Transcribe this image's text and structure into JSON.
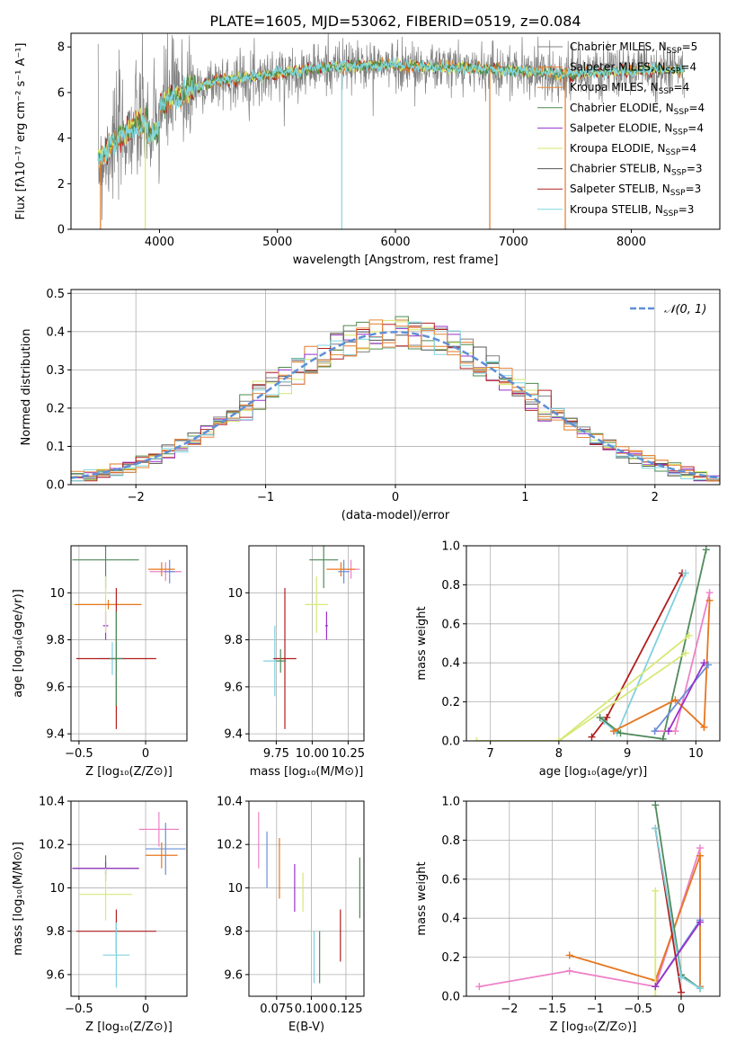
{
  "figure_title": "PLATE=1605, MJD=53062, FIBERID=0519, z=0.084",
  "colors": {
    "miles_chabrier": "#808080",
    "miles_salpeter": "#e07a26",
    "miles_kroupa": "#e8883a",
    "elodie_chabrier": "#4d8a4d",
    "elodie_salpeter": "#9932cc",
    "elodie_kroupa": "#d6e66a",
    "stelib_chabrier": "#555555",
    "stelib_salpeter": "#b22222",
    "stelib_kroupa": "#7fd6e0",
    "normal": "#5f8fd6",
    "pink": "#ee82c8",
    "blue": "#6a8fd8",
    "orange": "#e8761e",
    "green": "#4f8a5a",
    "red": "#b21e1e",
    "cyan": "#80d0e0",
    "yellow": "#d8e878",
    "purple": "#9a33c8"
  },
  "chart_data": [
    {
      "id": "spectrum",
      "type": "line",
      "xlabel": "wavelength [Angstrom, rest frame]",
      "ylabel": "Flux [fλ10⁻¹⁷ erg cm⁻² s⁻¹ A⁻¹]",
      "xlim": [
        3250,
        8750
      ],
      "ylim": [
        0,
        8.6
      ],
      "xticks": [
        4000,
        5000,
        6000,
        7000,
        8000
      ],
      "yticks": [
        0,
        2,
        4,
        6,
        8
      ],
      "grid": false,
      "legend": "top-right",
      "legend_entries": [
        "Chabrier MILES, N_SSP=5",
        "Salpeter MILES, N_SSP=4",
        "Kroupa MILES, N_SSP=4",
        "Chabrier ELODIE, N_SSP=4",
        "Salpeter ELODIE, N_SSP=4",
        "Kroupa ELODIE, N_SSP=4",
        "Chabrier STELIB, N_SSP=3",
        "Salpeter STELIB, N_SSP=3",
        "Kroupa STELIB, N_SSP=3"
      ],
      "data_shape": {
        "x": [
          3500,
          3600,
          3700,
          3800,
          3900,
          4000,
          4100,
          4300,
          4500,
          4800,
          5100,
          5400,
          5700,
          6000,
          6300,
          6600,
          6900,
          7200,
          7500,
          7800,
          8100,
          8400
        ],
        "y": [
          3.0,
          3.8,
          4.2,
          4.5,
          4.8,
          5.3,
          5.8,
          6.2,
          6.5,
          6.7,
          6.9,
          7.1,
          7.2,
          7.2,
          7.1,
          7.1,
          7.0,
          6.9,
          6.8,
          6.9,
          7.0,
          7.0
        ]
      }
    },
    {
      "id": "residuals",
      "type": "line",
      "xlabel": "(data-model)/error",
      "ylabel": "Normed distribution",
      "xlim": [
        -2.5,
        2.5
      ],
      "ylim": [
        0,
        0.51
      ],
      "xticks": [
        -2,
        -1,
        0,
        1,
        2
      ],
      "yticks": [
        0.0,
        0.1,
        0.2,
        0.3,
        0.4,
        0.5
      ],
      "grid": true,
      "legend": "top-right",
      "legend_entries": [
        "𝒩(0, 1)"
      ],
      "bins": 50
    },
    {
      "id": "age_vs_Z",
      "type": "scatter",
      "xlabel": "Z [log₁₀(Z/Z⊙)]",
      "ylabel": "age  [log₁₀(age/yr)]",
      "xlim": [
        -0.56,
        0.31
      ],
      "ylim": [
        9.37,
        10.2
      ],
      "xticks": [
        -0.5,
        0.0
      ],
      "yticks": [
        9.4,
        9.6,
        9.8,
        10.0
      ],
      "grid": true
    },
    {
      "id": "age_vs_mass",
      "type": "scatter",
      "xlabel": "mass [log₁₀(M/M⊙)]",
      "xlim": [
        9.56,
        10.36
      ],
      "ylim": [
        9.37,
        10.2
      ],
      "xticks": [
        9.75,
        10.0,
        10.25
      ],
      "xtick_labels": [
        "9.75",
        "10.00",
        "10.25"
      ],
      "yticks": [
        9.4,
        9.6,
        9.8,
        10.0
      ],
      "grid": true
    },
    {
      "id": "weight_vs_age",
      "type": "line",
      "xlabel": "age  [log₁₀(age/yr)]",
      "ylabel": "mass weight",
      "xlim": [
        6.65,
        10.35
      ],
      "ylim": [
        0,
        1
      ],
      "xticks": [
        7,
        8,
        9,
        10
      ],
      "yticks": [
        0.0,
        0.2,
        0.4,
        0.6,
        0.8,
        1.0
      ],
      "grid": true,
      "series": [
        {
          "color": "red",
          "x": [
            8.48,
            8.7,
            9.8
          ],
          "y": [
            0.02,
            0.12,
            0.86
          ]
        },
        {
          "color": "cyan",
          "x": [
            8.66,
            8.85,
            9.85
          ],
          "y": [
            0.1,
            0.04,
            0.86
          ]
        },
        {
          "color": "green",
          "x": [
            8.6,
            8.9,
            9.52,
            10.15
          ],
          "y": [
            0.12,
            0.04,
            0.01,
            0.98
          ]
        },
        {
          "color": "yellow",
          "x": [
            6.8,
            8.0,
            9.9
          ],
          "y": [
            0.0,
            0.0,
            0.54
          ]
        },
        {
          "color": "yellow",
          "x": [
            8.0,
            9.85
          ],
          "y": [
            0.0,
            0.45
          ]
        },
        {
          "color": "pink",
          "x": [
            9.4,
            9.7,
            10.2
          ],
          "y": [
            0.05,
            0.05,
            0.76
          ]
        },
        {
          "color": "orange",
          "x": [
            8.8,
            9.7,
            10.12
          ],
          "y": [
            0.05,
            0.21,
            0.07
          ]
        },
        {
          "color": "orange",
          "x": [
            10.12,
            10.2
          ],
          "y": [
            0.07,
            0.72
          ]
        },
        {
          "color": "blue",
          "x": [
            9.4,
            10.18
          ],
          "y": [
            0.05,
            0.39
          ]
        },
        {
          "color": "purple",
          "x": [
            9.6,
            10.12
          ],
          "y": [
            0.05,
            0.4
          ]
        }
      ]
    },
    {
      "id": "mass_vs_Z",
      "type": "scatter",
      "xlabel": "Z [log₁₀(Z/Z⊙)]",
      "ylabel": "mass [log₁₀(M/M⊙)]",
      "xlim": [
        -0.56,
        0.31
      ],
      "ylim": [
        9.5,
        10.4
      ],
      "xticks": [
        -0.5,
        0.0
      ],
      "yticks": [
        9.6,
        9.8,
        10.0,
        10.2,
        10.4
      ],
      "grid": true
    },
    {
      "id": "mass_vs_ebv",
      "type": "scatter",
      "xlabel": "E(B-V)",
      "xlim": [
        0.055,
        0.138
      ],
      "ylim": [
        9.5,
        10.4
      ],
      "xticks": [
        0.075,
        0.1,
        0.125
      ],
      "xtick_labels": [
        "0.075",
        "0.100",
        "0.125"
      ],
      "yticks": [
        9.6,
        9.8,
        10.0,
        10.2,
        10.4
      ],
      "grid": true
    },
    {
      "id": "weight_vs_Z",
      "type": "line",
      "xlabel": "Z [log₁₀(Z/Z⊙)]",
      "ylabel": "mass weight",
      "xlim": [
        -2.5,
        0.45
      ],
      "ylim": [
        0,
        1
      ],
      "xticks": [
        -2.0,
        -1.5,
        -1.0,
        -0.5,
        0.0
      ],
      "yticks": [
        0.0,
        0.2,
        0.4,
        0.6,
        0.8,
        1.0
      ],
      "grid": true,
      "series": [
        {
          "color": "pink",
          "x": [
            -2.35,
            -1.3,
            -0.3,
            0.22
          ],
          "y": [
            0.05,
            0.13,
            0.05,
            0.76
          ]
        },
        {
          "color": "orange",
          "x": [
            -1.3,
            -0.3,
            0.22
          ],
          "y": [
            0.21,
            0.08,
            0.72
          ]
        },
        {
          "color": "orange",
          "x": [
            0.22,
            0.22
          ],
          "y": [
            0.72,
            0.05
          ]
        },
        {
          "color": "blue",
          "x": [
            -0.3,
            0.22
          ],
          "y": [
            0.05,
            0.39
          ]
        },
        {
          "color": "green",
          "x": [
            -0.3,
            0.0,
            0.22
          ],
          "y": [
            0.98,
            0.11,
            0.04
          ]
        },
        {
          "color": "red",
          "x": [
            -0.3,
            0.0
          ],
          "y": [
            0.86,
            0.02
          ]
        },
        {
          "color": "cyan",
          "x": [
            -0.3,
            0.0,
            0.22
          ],
          "y": [
            0.86,
            0.1,
            0.04
          ]
        },
        {
          "color": "yellow",
          "x": [
            -0.3,
            -0.3
          ],
          "y": [
            0.54,
            0.0
          ]
        },
        {
          "color": "purple",
          "x": [
            -0.3,
            0.22
          ],
          "y": [
            0.05,
            0.38
          ]
        }
      ]
    }
  ]
}
